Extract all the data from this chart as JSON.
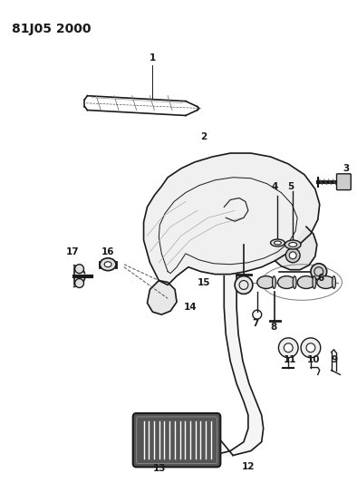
{
  "title": "81J05 2000",
  "bg_color": "#ffffff",
  "line_color": "#1a1a1a",
  "title_fontsize": 10,
  "label_fontsize": 7.5,
  "figsize": [
    3.94,
    5.33
  ],
  "dpi": 100
}
